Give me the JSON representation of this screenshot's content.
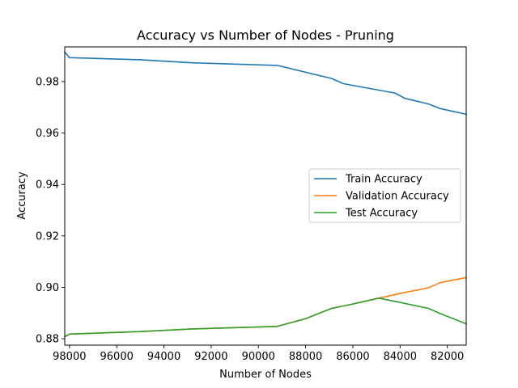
{
  "chart_data": {
    "type": "line",
    "title": "Accuracy vs Number of Nodes - Pruning",
    "xlabel": "Number of Nodes",
    "ylabel": "Accuracy",
    "xlim": [
      98200,
      81200
    ],
    "ylim": [
      0.8775,
      0.9935
    ],
    "x_inverted": true,
    "xticks": [
      98000,
      96000,
      94000,
      92000,
      90000,
      88000,
      86000,
      84000,
      82000
    ],
    "yticks": [
      0.88,
      0.9,
      0.92,
      0.94,
      0.96,
      0.98
    ],
    "ytick_labels": [
      "0.88",
      "0.90",
      "0.92",
      "0.94",
      "0.96",
      "0.98"
    ],
    "grid": false,
    "legend_position": "center-right",
    "series": [
      {
        "name": "Train Accuracy",
        "color": "#1f77b4",
        "x": [
          98200,
          98000,
          95000,
          92800,
          89200,
          86900,
          86400,
          84200,
          83800,
          82800,
          82300,
          81200
        ],
        "y": [
          0.9915,
          0.9893,
          0.9885,
          0.9873,
          0.9863,
          0.9812,
          0.9792,
          0.9755,
          0.9735,
          0.9713,
          0.9695,
          0.9673
        ]
      },
      {
        "name": "Validation Accuracy",
        "color": "#ff7f0e",
        "x": [
          98200,
          98000,
          95000,
          92800,
          89200,
          88000,
          86900,
          86000,
          84900,
          83900,
          82800,
          82300,
          81200
        ],
        "y": [
          0.8808,
          0.8818,
          0.8828,
          0.8838,
          0.8848,
          0.8878,
          0.8918,
          0.8935,
          0.8958,
          0.8978,
          0.8998,
          0.9018,
          0.9038
        ]
      },
      {
        "name": "Test Accuracy",
        "color": "#2ca02c",
        "x": [
          98200,
          98000,
          95000,
          92800,
          89200,
          88000,
          86900,
          86000,
          84900,
          84200,
          82800,
          82300,
          81200
        ],
        "y": [
          0.8808,
          0.8818,
          0.8828,
          0.8838,
          0.8848,
          0.8878,
          0.8918,
          0.8935,
          0.8958,
          0.8945,
          0.8918,
          0.8898,
          0.8858
        ]
      }
    ]
  }
}
